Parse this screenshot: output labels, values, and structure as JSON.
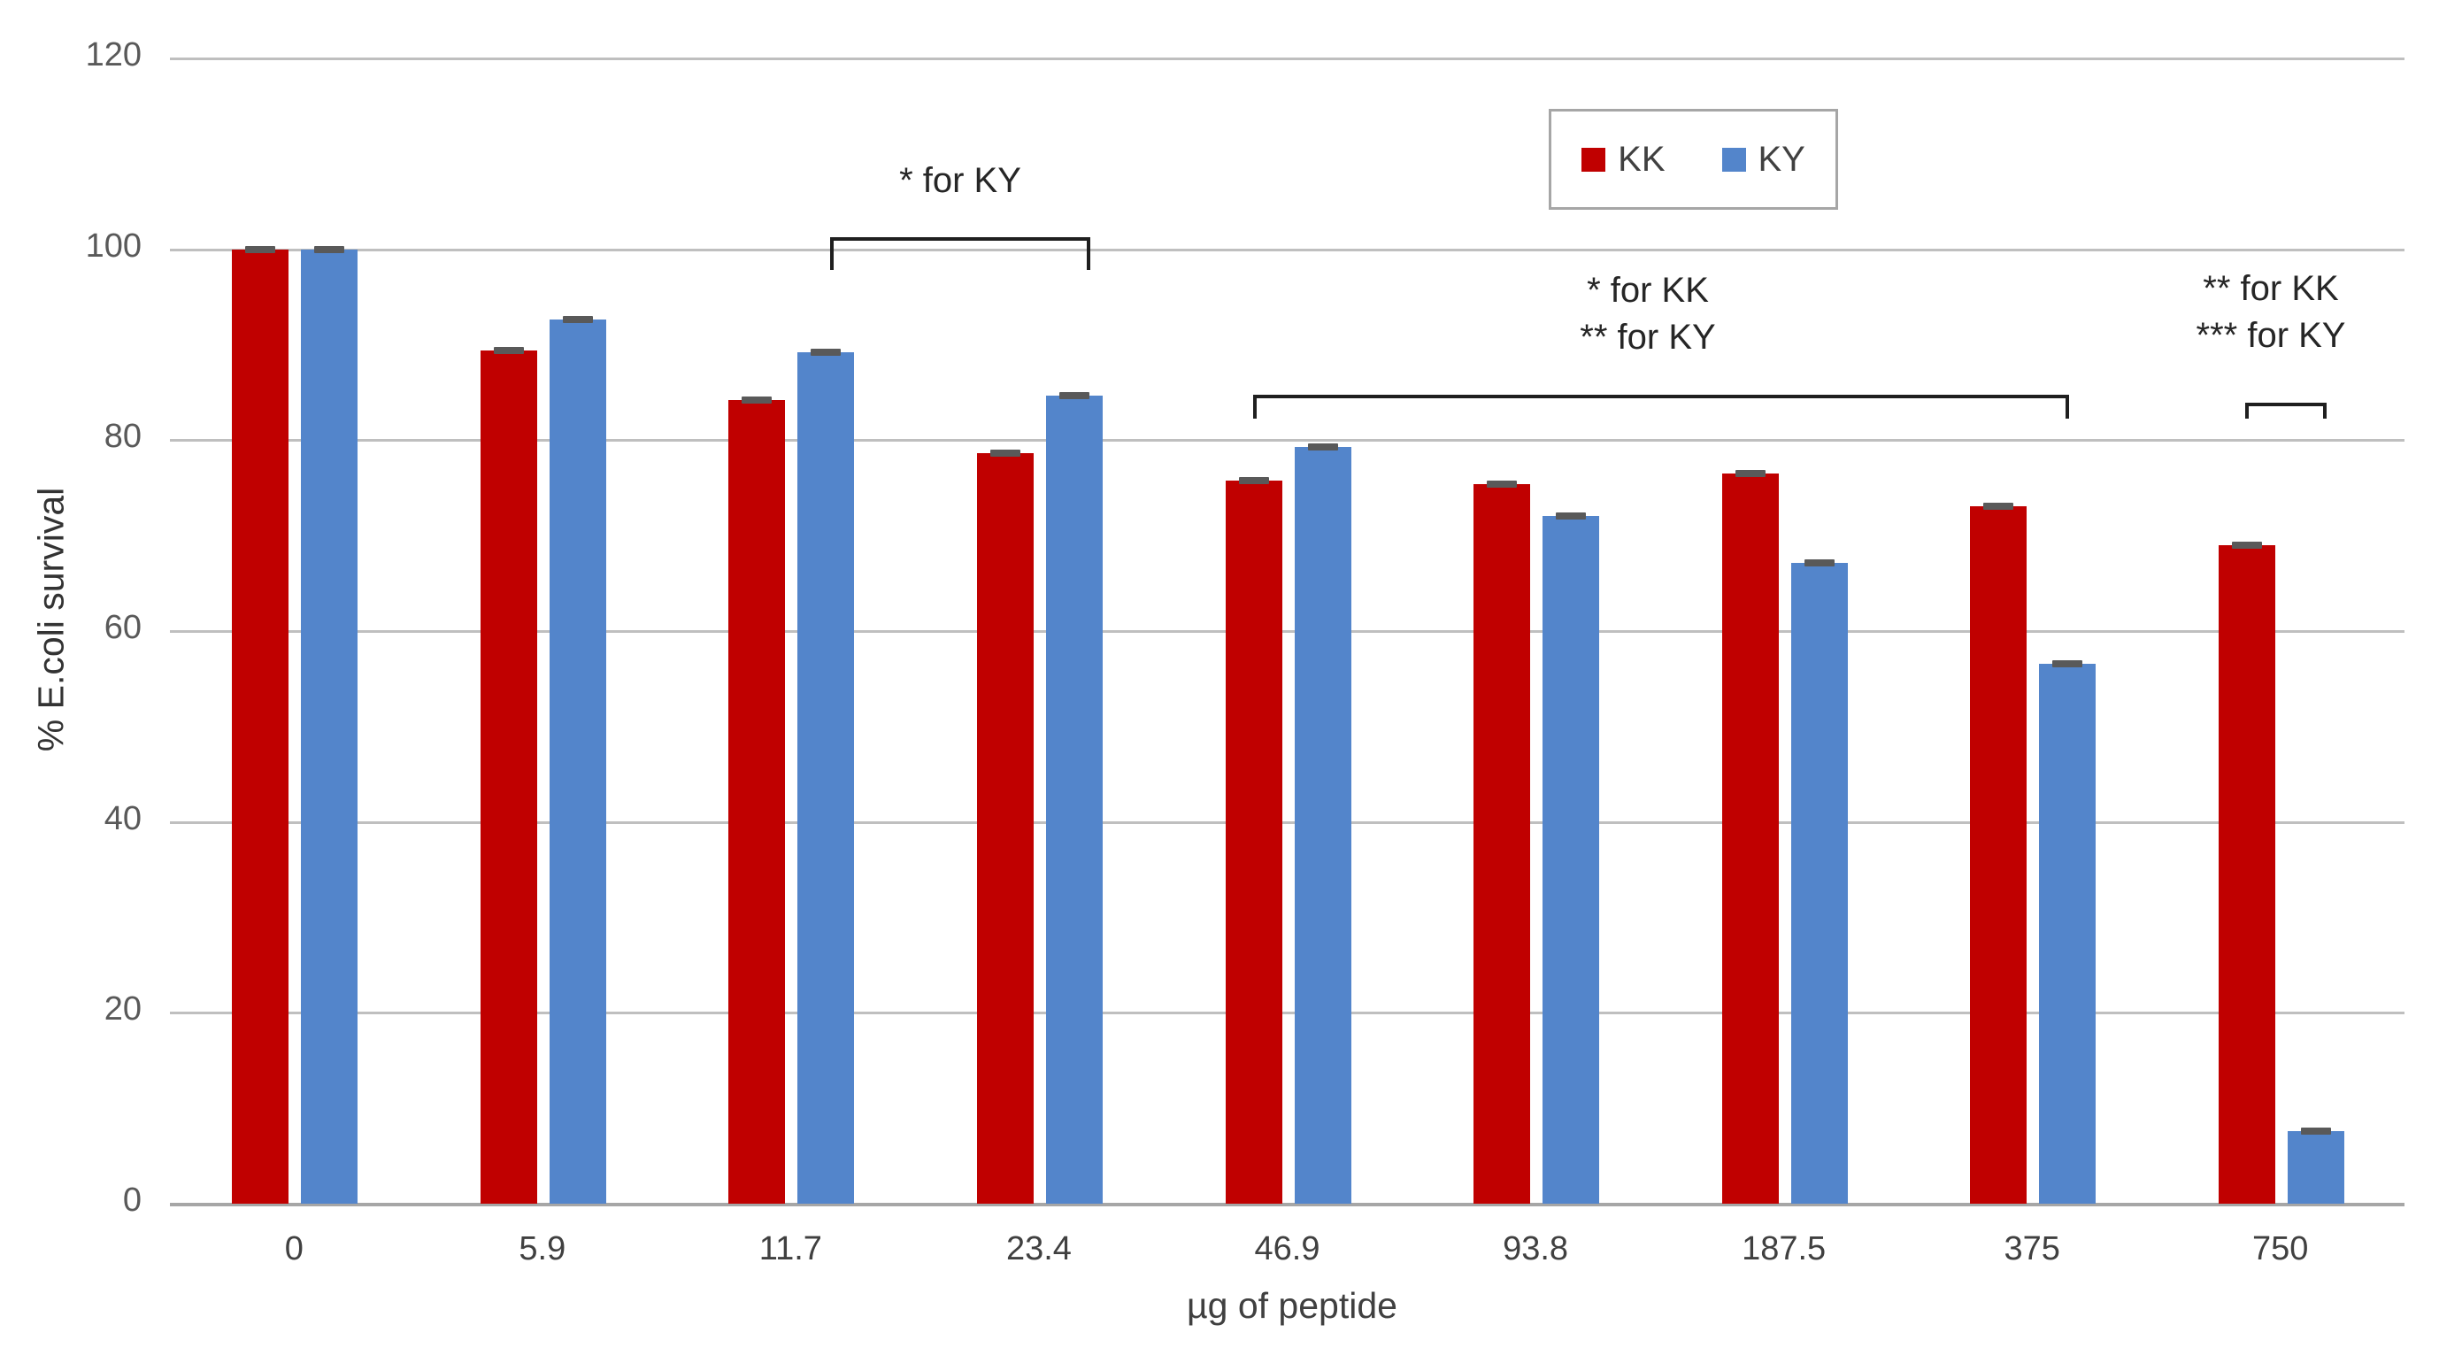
{
  "chart_data": {
    "type": "bar",
    "categories": [
      "0",
      "5.9",
      "11.7",
      "23.4",
      "46.9",
      "93.8",
      "187.5",
      "375",
      "750"
    ],
    "series": [
      {
        "name": "KK",
        "color": "#C00000",
        "values": [
          100,
          89.4,
          84.2,
          78.6,
          75.8,
          75.4,
          76.5,
          73.1,
          69.0
        ]
      },
      {
        "name": "KY",
        "color": "#5385CB",
        "values": [
          100,
          92.6,
          89.2,
          84.7,
          79.3,
          72.1,
          67.1,
          56.6,
          7.6
        ]
      }
    ],
    "xlabel": "µg of peptide",
    "ylabel": "% E.coli survival",
    "ylim": [
      0,
      120
    ],
    "y_ticks": [
      "0",
      "20",
      "40",
      "60",
      "80",
      "100",
      "120"
    ],
    "grid": true,
    "legend_position": "top-right",
    "error_bars": true,
    "error_cap_color": "#595959"
  },
  "legend": {
    "items": [
      {
        "label": "KK",
        "color": "#C00000"
      },
      {
        "label": "KY",
        "color": "#5385CB"
      }
    ]
  },
  "annotations": [
    {
      "lines": [
        "* for KY"
      ],
      "spans_categories": [
        "11.7",
        "23.4"
      ],
      "applies_to": "KY"
    },
    {
      "lines": [
        "* for KK",
        "** for KY"
      ],
      "spans_categories": [
        "46.9",
        "375"
      ],
      "applies_to": "KK and KY"
    },
    {
      "lines": [
        "** for KK",
        "*** for KY"
      ],
      "spans_categories": [
        "750",
        "750"
      ],
      "applies_to": "KK and KY"
    }
  ]
}
